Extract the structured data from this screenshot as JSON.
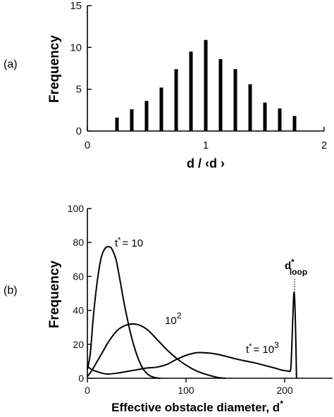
{
  "chart_data": [
    {
      "type": "bar",
      "panel_label": "(a)",
      "x": [
        0.25,
        0.375,
        0.5,
        0.625,
        0.75,
        0.875,
        1.0,
        1.125,
        1.25,
        1.375,
        1.5,
        1.625,
        1.75
      ],
      "values": [
        1.6,
        2.6,
        3.6,
        5.2,
        7.4,
        9.5,
        10.9,
        8.6,
        7.4,
        5.6,
        3.4,
        2.7,
        1.8
      ],
      "xlabel": "d / ‹d ›",
      "ylabel": "Frequency",
      "xlim": [
        0,
        2
      ],
      "ylim": [
        0,
        15
      ],
      "xticks": [
        "0",
        "1",
        "2"
      ],
      "yticks": [
        "0",
        "5",
        "10",
        "15"
      ],
      "grid": false
    },
    {
      "type": "line",
      "panel_label": "(b)",
      "xlabel": "Effective obstacle diameter, d",
      "xlabel_sup": "*",
      "ylabel": "Frequency",
      "xlim": [
        0,
        240
      ],
      "ylim": [
        0,
        100
      ],
      "xticks": [
        "0",
        "100",
        "200"
      ],
      "yticks": [
        "0",
        "20",
        "40",
        "60",
        "80",
        "100"
      ],
      "grid": false,
      "series": [
        {
          "label_main": "t",
          "label_sup": "*",
          "label_rest": "= 10",
          "x": [
            0,
            3,
            6,
            10,
            14,
            18,
            22,
            25,
            29,
            33,
            38,
            44,
            50,
            56,
            62,
            68,
            74
          ],
          "y": [
            5,
            15,
            36,
            57,
            71,
            76.5,
            77.5,
            76,
            70,
            58,
            42,
            26,
            14,
            6,
            2,
            0.5,
            0
          ]
        },
        {
          "label_main": "10",
          "label_sup": "2",
          "x": [
            0,
            5,
            10,
            16,
            22,
            30,
            38,
            46,
            54,
            62,
            72,
            82,
            92,
            102,
            112,
            122,
            132,
            140
          ],
          "y": [
            1,
            5,
            10,
            16,
            22,
            28,
            31,
            32,
            31,
            28,
            22,
            16,
            11,
            7,
            4,
            2,
            0.5,
            0
          ]
        },
        {
          "label_main": "t",
          "label_sup": "*",
          "label_rest": "= 10",
          "label_exp": "3",
          "x": [
            0,
            5,
            12,
            20,
            30,
            40,
            50,
            60,
            70,
            80,
            90,
            100,
            110,
            120,
            130,
            140,
            150,
            160,
            170,
            180,
            190,
            197,
            203,
            206,
            207,
            209,
            210,
            211,
            212
          ],
          "y": [
            7,
            5,
            3.5,
            2.5,
            3,
            4,
            5,
            6,
            6.5,
            8,
            11,
            13.5,
            15,
            15,
            14.3,
            13,
            11.5,
            10.2,
            9,
            7.5,
            6,
            4.8,
            4.3,
            5,
            15,
            47,
            48,
            30,
            0
          ]
        }
      ],
      "marker_label_main": "d",
      "marker_label_sup": "*",
      "marker_label_sub": "loop",
      "marker_x": 210
    }
  ]
}
